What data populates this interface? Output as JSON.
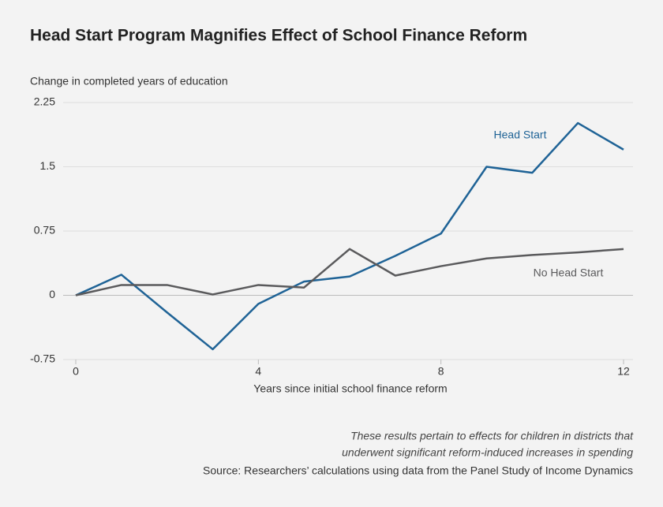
{
  "chart_data": {
    "type": "line",
    "title": "Head Start Program Magnifies Effect of School Finance Reform",
    "ylabel": "Change in completed years of education",
    "xlabel": "Years since initial school finance reform",
    "x": [
      0,
      1,
      2,
      3,
      4,
      5,
      6,
      7,
      8,
      9,
      10,
      11,
      12
    ],
    "series": [
      {
        "name": "Head Start",
        "color": "#1f6396",
        "values": [
          0,
          0.24,
          -0.2,
          -0.63,
          -0.1,
          0.16,
          0.22,
          0.46,
          0.72,
          1.5,
          1.43,
          2.01,
          1.7
        ]
      },
      {
        "name": "No Head Start",
        "color": "#5a5a5c",
        "values": [
          0,
          0.12,
          0.12,
          0.01,
          0.12,
          0.09,
          0.54,
          0.23,
          0.34,
          0.43,
          0.47,
          0.5,
          0.54
        ]
      }
    ],
    "xlim": [
      0,
      12
    ],
    "xticks": [
      0,
      4,
      8,
      12
    ],
    "ylim": [
      -0.75,
      2.25
    ],
    "yticks": [
      -0.75,
      0,
      0.75,
      1.5,
      2.25
    ],
    "grid": true,
    "notes": [
      "These results pertain to effects for children in districts that",
      "underwent significant reform-induced increases in spending"
    ],
    "source": "Source: Researchers’ calculations using data from the Panel Study of Income Dynamics"
  }
}
